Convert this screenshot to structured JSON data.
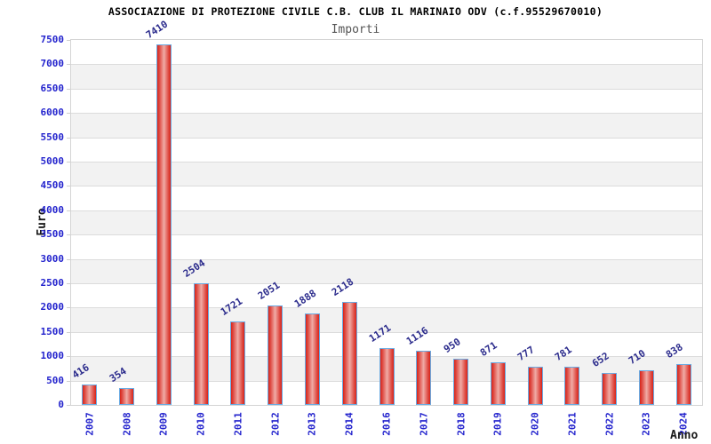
{
  "header": {
    "title": "ASSOCIAZIONE DI PROTEZIONE CIVILE C.B. CLUB IL MARINAIO ODV (c.f.95529670010)",
    "subtitle": "Importi"
  },
  "chart_data": {
    "type": "bar",
    "title": "ASSOCIAZIONE DI PROTEZIONE CIVILE C.B. CLUB IL MARINAIO ODV (c.f.95529670010)",
    "subtitle": "Importi",
    "xlabel": "Anno",
    "ylabel": "Euro",
    "categories": [
      "2007",
      "2008",
      "2009",
      "2010",
      "2011",
      "2012",
      "2013",
      "2014",
      "2016",
      "2017",
      "2018",
      "2019",
      "2020",
      "2021",
      "2022",
      "2023",
      "2024"
    ],
    "values": [
      416,
      354,
      7410,
      2504,
      1721,
      2051,
      1888,
      2118,
      1171,
      1116,
      950,
      871,
      777,
      781,
      652,
      710,
      838
    ],
    "ylim": [
      0,
      7500
    ],
    "y_ticks": [
      0,
      500,
      1000,
      1500,
      2000,
      2500,
      3000,
      3500,
      4000,
      4500,
      5000,
      5500,
      6000,
      6500,
      7000,
      7500
    ],
    "bar_value_labels_shown": true,
    "bar_value_labels_rotated": true,
    "x_tick_labels_rotated": true,
    "grid": "horizontal-alternating-bands",
    "legend_shown": false
  },
  "colors": {
    "axis_tick_label": "#2323cd",
    "value_label": "#2b2b8c",
    "axis_title": "#1a1a1a",
    "title_text": "#000000",
    "subtitle_text": "#555555",
    "bar_edge_red": "#d8241a",
    "bar_center_highlight": "#f0aea8",
    "bar_border_blue": "#6aabe3",
    "band_gray": "#f2f2f2",
    "gridline_gray": "#dcdcdc",
    "plot_border_gray": "#d4d4d4",
    "background": "#ffffff"
  }
}
